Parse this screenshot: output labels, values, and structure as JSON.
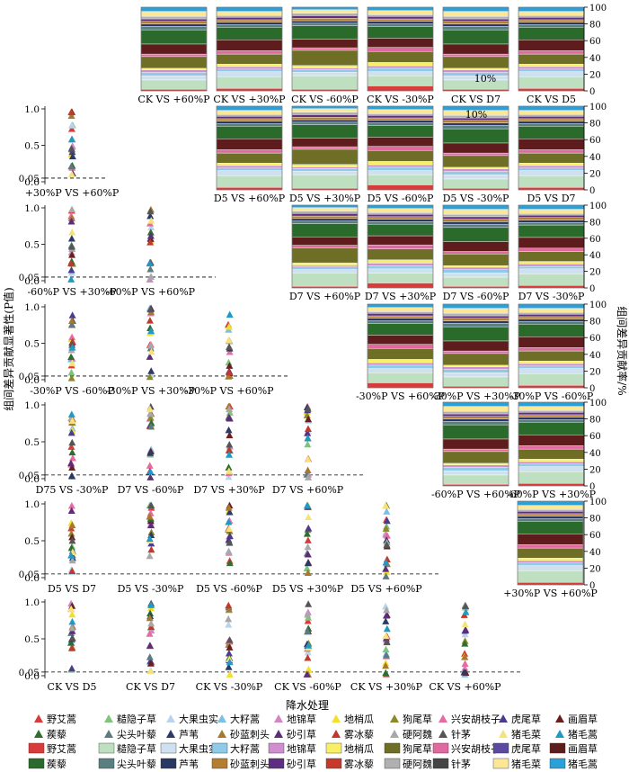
{
  "labels": {
    "y_left": "组间差异贡献显著性(P值)",
    "y_right": "组间差异贡献率/%",
    "x_bottom": "降水处理",
    "y_ticks_left": [
      "1.0",
      "0.5",
      "0.05",
      "0.0"
    ],
    "y_ticks_right": [
      "100",
      "80",
      "60",
      "40",
      "20",
      "0"
    ],
    "annot": "10%"
  },
  "legend": {
    "triangle": [
      {
        "name": "野艾蒿",
        "color": "#d93b3b"
      },
      {
        "name": "糙隐子草",
        "color": "#7fc37f"
      },
      {
        "name": "大果虫实",
        "color": "#b9d4ea"
      },
      {
        "name": "大籽蒿",
        "color": "#7cc0e4"
      },
      {
        "name": "地锦草",
        "color": "#d486c4"
      },
      {
        "name": "地梢瓜",
        "color": "#f2e030"
      },
      {
        "name": "狗尾草",
        "color": "#8a8a2a"
      },
      {
        "name": "兴安胡枝子",
        "color": "#e86aa0"
      },
      {
        "name": "虎尾草",
        "color": "#4b3c8f"
      },
      {
        "name": "画眉草",
        "color": "#6a1f1f"
      },
      {
        "name": "蒺藜",
        "color": "#2e6e2e"
      },
      {
        "name": "尖头叶藜",
        "color": "#5c7a80"
      },
      {
        "name": "芦苇",
        "color": "#2e3a66"
      },
      {
        "name": "砂蓝刺头",
        "color": "#a8782c"
      },
      {
        "name": "砂引草",
        "color": "#5b2d7a"
      },
      {
        "name": "雾冰藜",
        "color": "#c0392b"
      },
      {
        "name": "硬阿魏",
        "color": "#a8a8a8"
      },
      {
        "name": "针茅",
        "color": "#555555"
      },
      {
        "name": "猪毛菜",
        "color": "#f7e27a"
      },
      {
        "name": "猪毛蒿",
        "color": "#1e9ac8"
      }
    ],
    "rect": [
      {
        "name": "野艾蒿",
        "color": "#d93b3b"
      },
      {
        "name": "糙隐子草",
        "color": "#bfe0c0"
      },
      {
        "name": "大果虫实",
        "color": "#cfe1ef"
      },
      {
        "name": "大籽蒿",
        "color": "#8fcbe8"
      },
      {
        "name": "地锦草",
        "color": "#cf8fcf"
      },
      {
        "name": "地梢瓜",
        "color": "#f7f066"
      },
      {
        "name": "狗尾草",
        "color": "#6e6e26"
      },
      {
        "name": "兴安胡枝子",
        "color": "#e06aa0"
      },
      {
        "name": "虎尾草",
        "color": "#5a4aa0"
      },
      {
        "name": "画眉草",
        "color": "#5e1c1c"
      },
      {
        "name": "蒺藜",
        "color": "#2a6a2a"
      },
      {
        "name": "尖头叶藜",
        "color": "#5a7f80"
      },
      {
        "name": "芦苇",
        "color": "#283763"
      },
      {
        "name": "砂蓝刺头",
        "color": "#b47e30"
      },
      {
        "name": "砂引草",
        "color": "#5e2e80"
      },
      {
        "name": "雾冰藜",
        "color": "#c63a2e"
      },
      {
        "name": "硬阿魏",
        "color": "#b0b0b0"
      },
      {
        "name": "针茅",
        "color": "#444444"
      },
      {
        "name": "猪毛菜",
        "color": "#fbe796"
      },
      {
        "name": "猪毛蒿",
        "color": "#2aa0d8"
      }
    ]
  },
  "chart_data": [
    {
      "type": "scatter",
      "title": "",
      "ylabel": "组间差异贡献显著性(P值)",
      "xlabel": "降水处理",
      "ylim": [
        0,
        1
      ],
      "threshold": 0.05,
      "rows": [
        {
          "comparisons": [
            "+30%P VS +60%P"
          ]
        },
        {
          "comparisons": [
            "-60%P VS +30%P",
            "-60%P VS +60%P"
          ]
        },
        {
          "comparisons": [
            "-30%P VS -60%P",
            "-30%P VS +30%P",
            "-30%P VS +60%P"
          ]
        },
        {
          "comparisons": [
            "D75 VS -30%P",
            "D7 VS -60%P",
            "D7 VS +30%P",
            "D7 VS +60%P"
          ]
        },
        {
          "comparisons": [
            "D5 VS D7",
            "D5 VS -30%P",
            "D5 VS -60%P",
            "D5 VS +30%P",
            "D5 VS +60%P"
          ]
        },
        {
          "comparisons": [
            "CK VS D5",
            "CK VS D7",
            "CK VS -30%P",
            "CK VS -60%P",
            "CK VS +30%P",
            "CK VS +60%P"
          ]
        }
      ]
    },
    {
      "type": "bar",
      "stacked": true,
      "title": "",
      "ylabel": "组间差异贡献率/%",
      "ylim": [
        0,
        100
      ],
      "rows": [
        {
          "comparisons": [
            "CK VS +60%P",
            "CK VS +30%P",
            "CK VS -60%P",
            "CK VS -30%P",
            "CK VS D7",
            "CK VS D5"
          ]
        },
        {
          "comparisons": [
            "D5 VS +60%P",
            "D5 VS +30%P",
            "D5 VS -60%P",
            "D5 VS -30%P",
            "D5 VS D7"
          ]
        },
        {
          "comparisons": [
            "D7 VS +60%P",
            "D7 VS +30%P",
            "D7 VS -60%P",
            "D7 VS -30%P"
          ]
        },
        {
          "comparisons": [
            "-30%P VS +60%P",
            "-30%P VS +30%P",
            "-30%P VS -60%P"
          ]
        },
        {
          "comparisons": [
            "-60%P VS +60%P",
            "-60%P VS +30%P"
          ]
        },
        {
          "comparisons": [
            "+30%P VS +60%P"
          ]
        }
      ]
    }
  ]
}
